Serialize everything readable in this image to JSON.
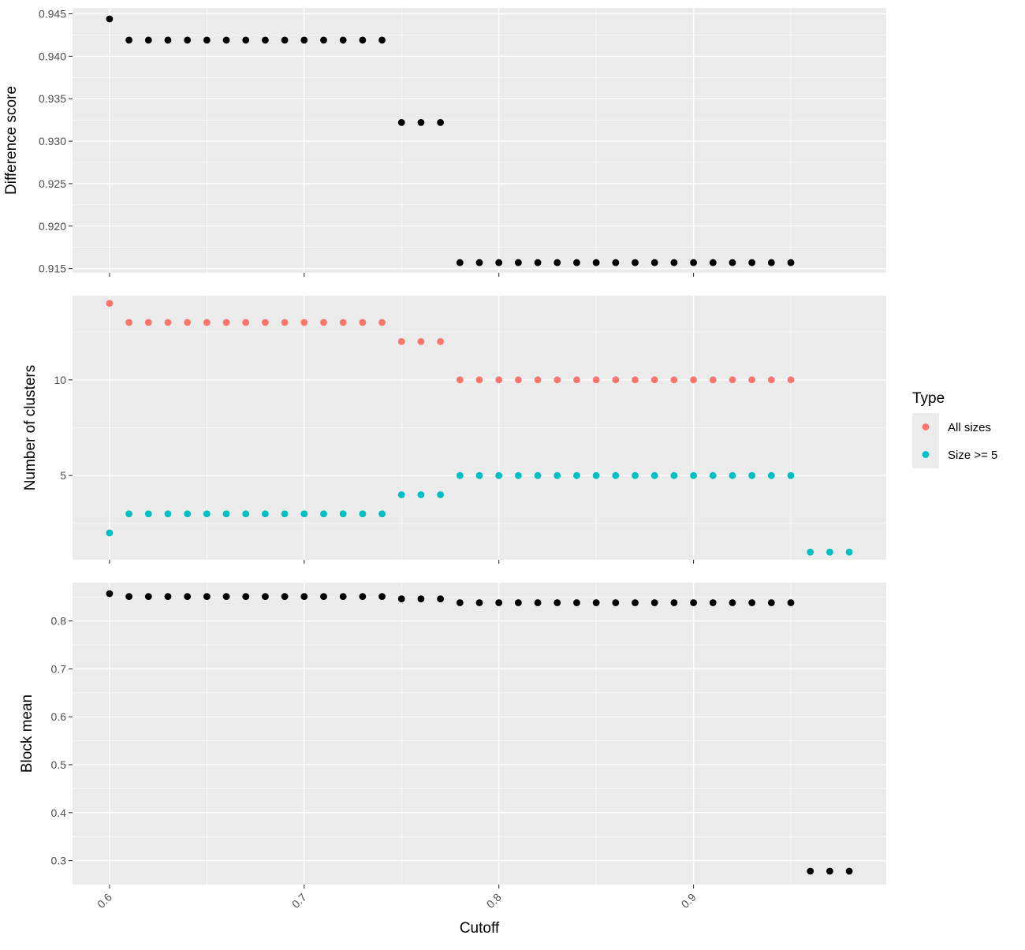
{
  "chart_data": [
    {
      "type": "scatter",
      "ylabel": "Difference score",
      "ylim": [
        0.9145,
        0.9457
      ],
      "yticks": [
        "0.915",
        "0.920",
        "0.925",
        "0.930",
        "0.935",
        "0.940",
        "0.945"
      ],
      "grid": true,
      "series": [
        {
          "color": "#000000",
          "x": [
            0.6,
            0.61,
            0.62,
            0.63,
            0.64,
            0.65,
            0.66,
            0.67,
            0.68,
            0.69,
            0.7,
            0.71,
            0.72,
            0.73,
            0.74,
            0.75,
            0.76,
            0.77,
            0.78,
            0.79,
            0.8,
            0.81,
            0.82,
            0.83,
            0.84,
            0.85,
            0.86,
            0.87,
            0.88,
            0.89,
            0.9,
            0.91,
            0.92,
            0.93,
            0.94,
            0.95
          ],
          "y": [
            0.9444,
            0.9419,
            0.9419,
            0.9419,
            0.9419,
            0.9419,
            0.9419,
            0.9419,
            0.9419,
            0.9419,
            0.9419,
            0.9419,
            0.9419,
            0.9419,
            0.9419,
            0.9322,
            0.9322,
            0.9322,
            0.9157,
            0.9157,
            0.9157,
            0.9157,
            0.9157,
            0.9157,
            0.9157,
            0.9157,
            0.9157,
            0.9157,
            0.9157,
            0.9157,
            0.9157,
            0.9157,
            0.9157,
            0.9157,
            0.9157,
            0.9157
          ]
        }
      ]
    },
    {
      "type": "scatter",
      "ylabel": "Number of clusters",
      "ylim": [
        0.6,
        14.4
      ],
      "yticks": [
        "5",
        "10"
      ],
      "grid": true,
      "legend": {
        "title": "Type",
        "placement": "right",
        "entries": [
          {
            "label": "All sizes",
            "color": "#F8766D"
          },
          {
            "label": "Size >= 5",
            "color": "#00BFC4"
          }
        ]
      },
      "series": [
        {
          "name": "All sizes",
          "color": "#F8766D",
          "x": [
            0.6,
            0.61,
            0.62,
            0.63,
            0.64,
            0.65,
            0.66,
            0.67,
            0.68,
            0.69,
            0.7,
            0.71,
            0.72,
            0.73,
            0.74,
            0.75,
            0.76,
            0.77,
            0.78,
            0.79,
            0.8,
            0.81,
            0.82,
            0.83,
            0.84,
            0.85,
            0.86,
            0.87,
            0.88,
            0.89,
            0.9,
            0.91,
            0.92,
            0.93,
            0.94,
            0.95
          ],
          "y": [
            14,
            13,
            13,
            13,
            13,
            13,
            13,
            13,
            13,
            13,
            13,
            13,
            13,
            13,
            13,
            12,
            12,
            12,
            10,
            10,
            10,
            10,
            10,
            10,
            10,
            10,
            10,
            10,
            10,
            10,
            10,
            10,
            10,
            10,
            10,
            10
          ]
        },
        {
          "name": "Size >= 5",
          "color": "#00BFC4",
          "x": [
            0.6,
            0.61,
            0.62,
            0.63,
            0.64,
            0.65,
            0.66,
            0.67,
            0.68,
            0.69,
            0.7,
            0.71,
            0.72,
            0.73,
            0.74,
            0.75,
            0.76,
            0.77,
            0.78,
            0.79,
            0.8,
            0.81,
            0.82,
            0.83,
            0.84,
            0.85,
            0.86,
            0.87,
            0.88,
            0.89,
            0.9,
            0.91,
            0.92,
            0.93,
            0.94,
            0.95,
            0.96,
            0.97,
            0.98
          ],
          "y": [
            2,
            3,
            3,
            3,
            3,
            3,
            3,
            3,
            3,
            3,
            3,
            3,
            3,
            3,
            3,
            4,
            4,
            4,
            5,
            5,
            5,
            5,
            5,
            5,
            5,
            5,
            5,
            5,
            5,
            5,
            5,
            5,
            5,
            5,
            5,
            5,
            1,
            1,
            1
          ]
        }
      ]
    },
    {
      "type": "scatter",
      "ylabel": "Block mean",
      "ylim": [
        0.25,
        0.88
      ],
      "yticks": [
        "0.3",
        "0.4",
        "0.5",
        "0.6",
        "0.7",
        "0.8"
      ],
      "grid": true,
      "series": [
        {
          "color": "#000000",
          "x": [
            0.6,
            0.61,
            0.62,
            0.63,
            0.64,
            0.65,
            0.66,
            0.67,
            0.68,
            0.69,
            0.7,
            0.71,
            0.72,
            0.73,
            0.74,
            0.75,
            0.76,
            0.77,
            0.78,
            0.79,
            0.8,
            0.81,
            0.82,
            0.83,
            0.84,
            0.85,
            0.86,
            0.87,
            0.88,
            0.89,
            0.9,
            0.91,
            0.92,
            0.93,
            0.94,
            0.95,
            0.96,
            0.97,
            0.98
          ],
          "y": [
            0.857,
            0.851,
            0.851,
            0.851,
            0.851,
            0.851,
            0.851,
            0.851,
            0.851,
            0.851,
            0.851,
            0.851,
            0.851,
            0.851,
            0.851,
            0.846,
            0.846,
            0.846,
            0.838,
            0.838,
            0.838,
            0.838,
            0.838,
            0.838,
            0.838,
            0.838,
            0.838,
            0.838,
            0.838,
            0.838,
            0.838,
            0.838,
            0.838,
            0.838,
            0.838,
            0.838,
            0.278,
            0.278,
            0.278
          ]
        }
      ]
    }
  ],
  "shared_x": {
    "xlabel": "Cutoff",
    "xlim": [
      0.581,
      0.999
    ],
    "xticks": [
      "0.6",
      "0.7",
      "0.8",
      "0.9"
    ]
  }
}
